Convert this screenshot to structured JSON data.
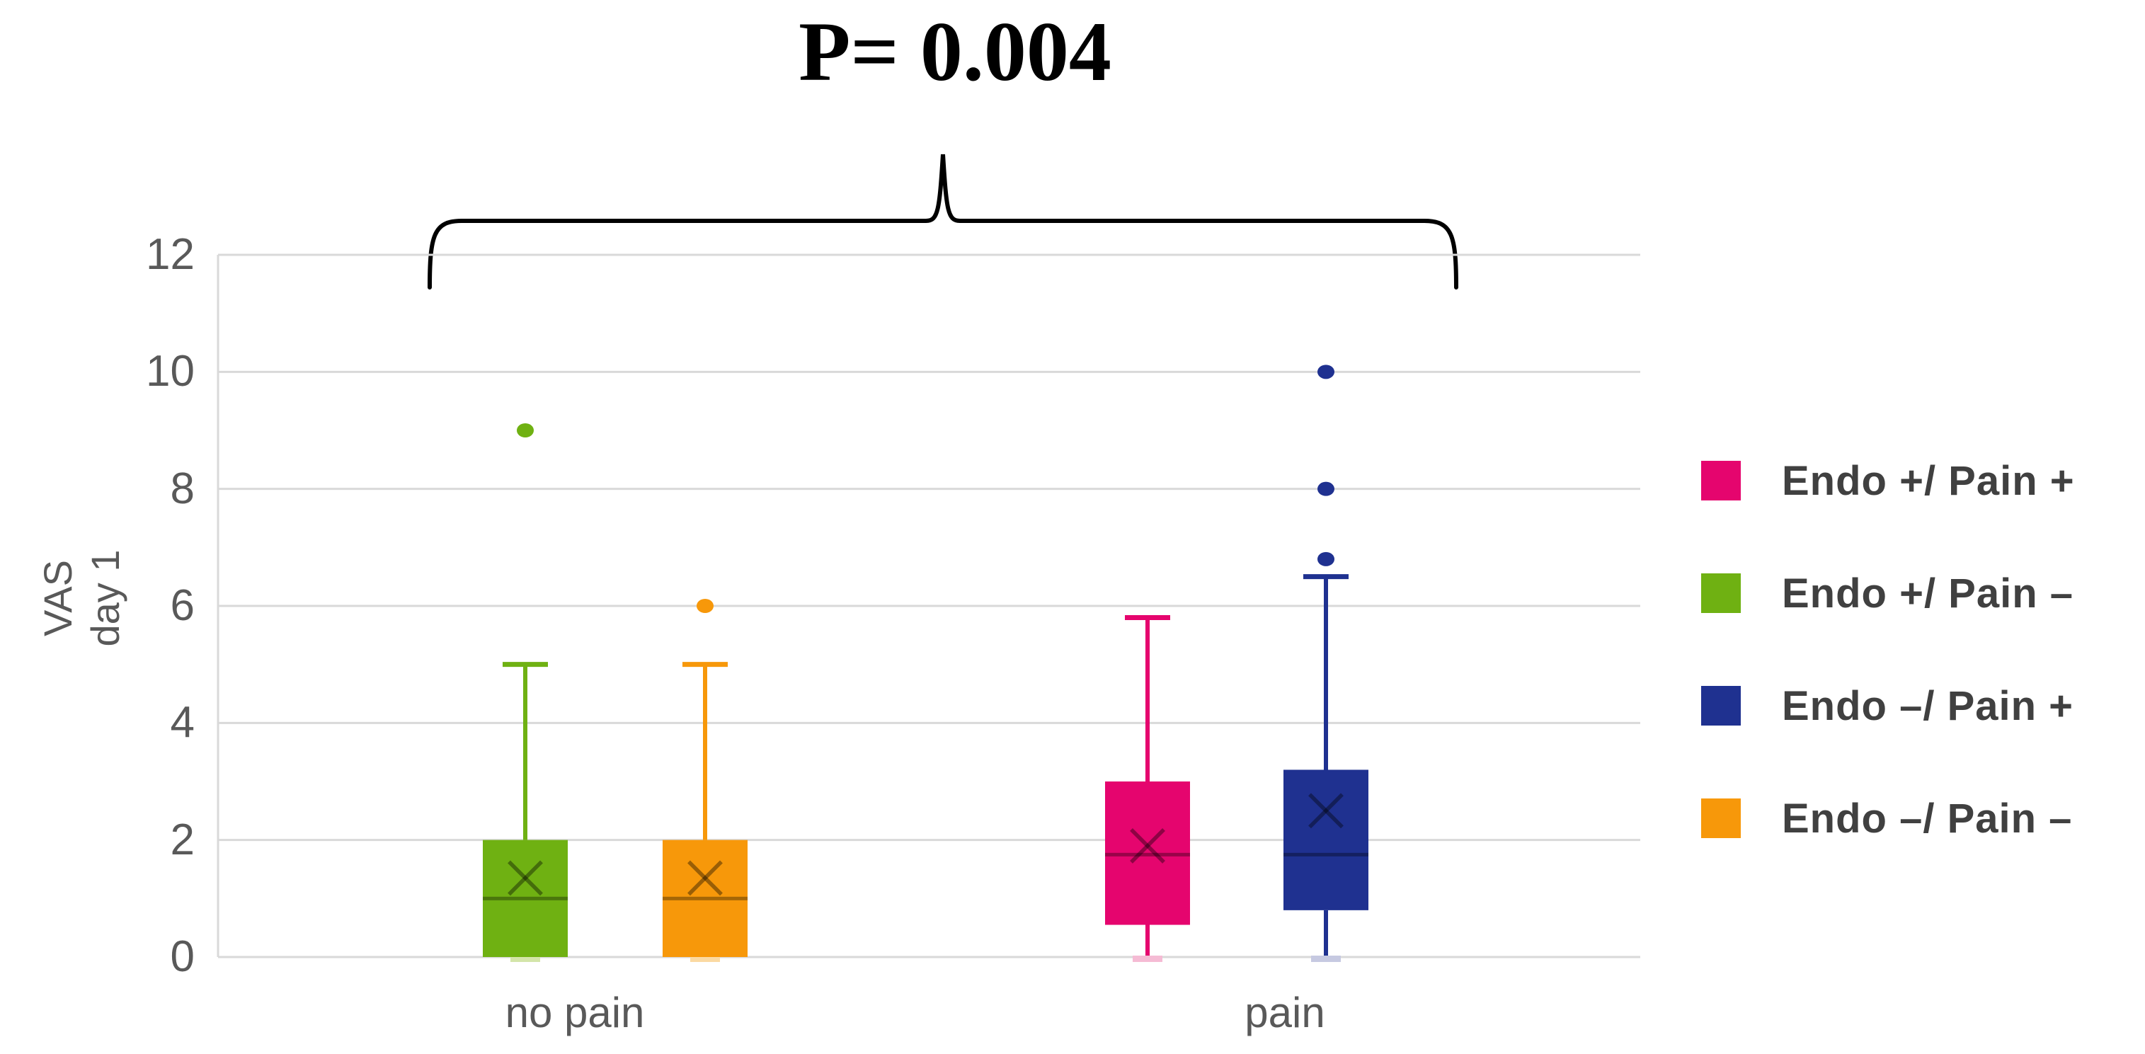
{
  "figure": {
    "p_value_label": "P= 0.004"
  },
  "chart_data": {
    "type": "boxplot",
    "title": "P= 0.004",
    "ylabel": {
      "line1": "VAS",
      "line2": "day 1"
    },
    "xlabel": "",
    "ylim": [
      0,
      12
    ],
    "y_ticks": [
      12,
      10,
      8,
      6,
      4,
      2,
      0
    ],
    "grid": true,
    "legend_position": "right",
    "categories": [
      "no pain",
      "pain"
    ],
    "annotation": {
      "text": "P= 0.004",
      "compares": [
        "no pain",
        "pain"
      ]
    },
    "series": [
      {
        "name": "Endo +/ Pain +",
        "group": "pain",
        "color": "#E5056E",
        "light_color": "#F5BBD4",
        "min": 0,
        "q1": 0.55,
        "median": 1.75,
        "q3": 3,
        "whisker_max": 5.8,
        "mean": 1.9,
        "outliers": []
      },
      {
        "name": "Endo +/ Pain –",
        "group": "no pain",
        "color": "#6FB112",
        "light_color": "#D3E5A9",
        "min": 0,
        "q1": 0,
        "median": 1,
        "q3": 2,
        "whisker_max": 5,
        "mean": 1.35,
        "outliers": [
          9
        ]
      },
      {
        "name": "Endo –/ Pain +",
        "group": "pain",
        "color": "#1F3190",
        "light_color": "#C6C9E1",
        "min": 0,
        "q1": 0.8,
        "median": 1.75,
        "q3": 3.2,
        "whisker_max": 6.5,
        "mean": 2.5,
        "outliers": [
          6.8,
          8,
          10
        ]
      },
      {
        "name": "Endo –/ Pain –",
        "group": "no pain",
        "color": "#F7980A",
        "light_color": "#FBD9A2",
        "min": 0,
        "q1": 0,
        "median": 1,
        "q3": 2,
        "whisker_max": 5,
        "mean": 1.35,
        "outliers": [
          6
        ]
      }
    ]
  }
}
